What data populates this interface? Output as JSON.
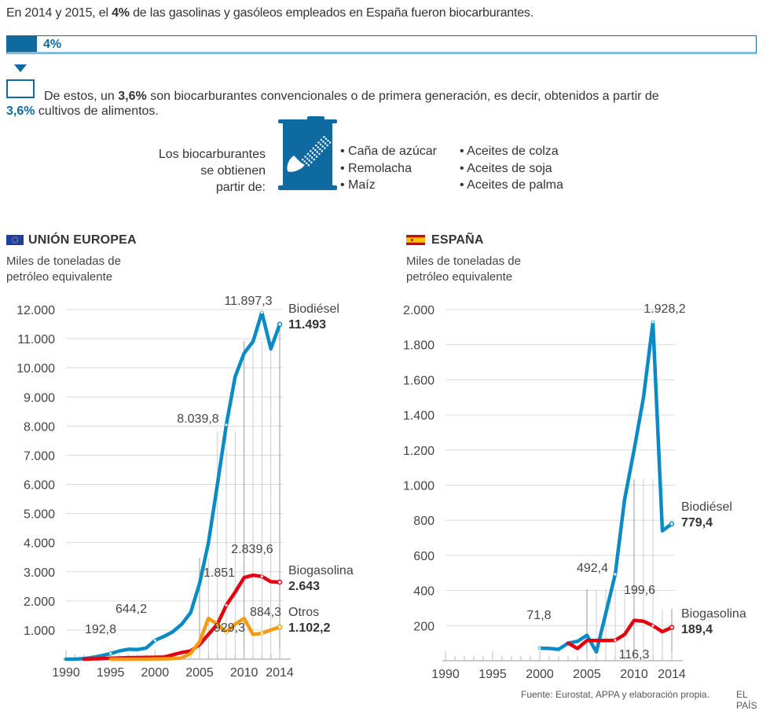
{
  "intro": {
    "pre": "En 2014 y 2015, el ",
    "bold": "4%",
    "post": " de las gasolinas y gasóleos empleados en España fueron biocarburantes."
  },
  "share_bar": {
    "label": "4%",
    "fill_percent": 4,
    "color": "#0e6aa1"
  },
  "subtext": {
    "pre": "De estos, un ",
    "bold": "3,6%",
    "post": " son biocarburantes convencionales o de primera generación, es decir, obtenidos a partir de",
    "line2_bold": "3,6%",
    "line2_post": " cultivos de alimentos."
  },
  "sources": {
    "label": [
      "Los biocarburantes",
      "se obtienen",
      "partir de:"
    ],
    "icon": "corn-can-icon",
    "col1": [
      "Caña de azúcar",
      "Remolacha",
      "Maíz"
    ],
    "col2": [
      "Aceites de colza",
      "Aceites de soja",
      "Aceites de palma"
    ]
  },
  "footer": {
    "source": "Fuente: Eurostat, APPA y elaboración propia.",
    "brand": "EL PAÍS"
  },
  "colors": {
    "biodiesel": "#0a8bc6",
    "biogasolina": "#e3000f",
    "otros": "#f39c12",
    "accent": "#0e6aa1"
  },
  "chart_data": [
    {
      "type": "line",
      "title": "UNIÓN EUROPEA",
      "flag": "eu-flag-icon",
      "ylabel": "Miles de toneladas de petróleo equivalente",
      "xlim": [
        1990,
        2014
      ],
      "ylim": [
        0,
        12000
      ],
      "yticks": [
        1000,
        2000,
        3000,
        4000,
        5000,
        6000,
        7000,
        8000,
        9000,
        10000,
        11000,
        12000
      ],
      "ytick_labels": [
        "1.000",
        "2.000",
        "3.000",
        "4.000",
        "5.000",
        "6.000",
        "7.000",
        "8.000",
        "9.000",
        "10.000",
        "11.000",
        "12.000"
      ],
      "xticks": [
        1990,
        1995,
        2000,
        2005,
        2010,
        2014
      ],
      "xtick_labels": [
        "1990",
        "1995",
        "2000",
        "2005",
        "2010",
        "2014"
      ],
      "grid": true,
      "series": [
        {
          "name": "Biodiésel",
          "end_label": "11.493",
          "color_key": "biodiesel",
          "x": [
            1990,
            1991,
            1992,
            1993,
            1994,
            1995,
            1996,
            1997,
            1998,
            1999,
            2000,
            2001,
            2002,
            2003,
            2004,
            2005,
            2006,
            2007,
            2008,
            2009,
            2010,
            2011,
            2012,
            2013,
            2014
          ],
          "y": [
            0,
            0,
            20,
            60,
            120,
            192.8,
            280,
            340,
            330,
            380,
            644.2,
            780,
            940,
            1200,
            1600,
            2600,
            4000,
            6000,
            8039.8,
            9700,
            10500,
            10900,
            11897.3,
            10650,
            11493
          ]
        },
        {
          "name": "Biogasolina",
          "end_label": "2.643",
          "color_key": "biogasolina",
          "x": [
            1992,
            1993,
            1994,
            1995,
            1996,
            1997,
            1998,
            1999,
            2000,
            2001,
            2002,
            2003,
            2004,
            2005,
            2006,
            2007,
            2008,
            2009,
            2010,
            2011,
            2012,
            2013,
            2014
          ],
          "y": [
            0,
            10,
            20,
            30,
            40,
            50,
            55,
            60,
            65,
            70,
            150,
            230,
            280,
            500,
            850,
            1200,
            1851,
            2300,
            2800,
            2880,
            2839.6,
            2660,
            2643
          ]
        },
        {
          "name": "Otros",
          "end_label": "1.102,2",
          "color_key": "otros",
          "x": [
            1995,
            1996,
            1997,
            1998,
            1999,
            2000,
            2001,
            2002,
            2003,
            2004,
            2005,
            2006,
            2007,
            2008,
            2009,
            2010,
            2011,
            2012,
            2013,
            2014
          ],
          "y": [
            0,
            0,
            0,
            0,
            0,
            5,
            10,
            20,
            40,
            200,
            600,
            1400,
            1200,
            929.3,
            1200,
            1400,
            850,
            884.3,
            1000,
            1102.2
          ]
        }
      ],
      "annotations": [
        {
          "text": "192,8",
          "x": 1995,
          "y": 192.8
        },
        {
          "text": "644,2",
          "x": 2000,
          "y": 644.2
        },
        {
          "text": "8.039,8",
          "x": 2008,
          "y": 8039.8
        },
        {
          "text": "11.897,3",
          "x": 2012,
          "y": 11897.3
        },
        {
          "text": "1.851",
          "x": 2008,
          "y": 1851
        },
        {
          "text": "2.839,6",
          "x": 2012,
          "y": 2839.6
        },
        {
          "text": "929,3",
          "x": 2008,
          "y": 929.3
        },
        {
          "text": "884,3",
          "x": 2012,
          "y": 884.3
        }
      ]
    },
    {
      "type": "line",
      "title": "ESPAÑA",
      "flag": "spain-flag-icon",
      "ylabel": "Miles de toneladas de petróleo equivalente",
      "xlim": [
        1990,
        2014
      ],
      "ylim": [
        0,
        2000
      ],
      "yticks": [
        200,
        400,
        600,
        800,
        1000,
        1200,
        1400,
        1600,
        1800,
        2000
      ],
      "ytick_labels": [
        "200",
        "400",
        "600",
        "800",
        "1.000",
        "1.200",
        "1.400",
        "1.600",
        "1.800",
        "2.000"
      ],
      "xticks": [
        1990,
        1995,
        2000,
        2005,
        2010,
        2014
      ],
      "xtick_labels": [
        "1990",
        "1995",
        "2000",
        "2005",
        "2010",
        "2014"
      ],
      "grid": true,
      "series": [
        {
          "name": "Biodiésel",
          "end_label": "779,4",
          "color_key": "biodiesel",
          "x": [
            2000,
            2001,
            2002,
            2003,
            2004,
            2005,
            2006,
            2007,
            2008,
            2009,
            2010,
            2011,
            2012,
            2013,
            2014
          ],
          "y": [
            71.8,
            70,
            65,
            100,
            110,
            145,
            50,
            270,
            492.4,
            920,
            1200,
            1500,
            1928.2,
            740,
            779.4
          ]
        },
        {
          "name": "Biogasolina",
          "end_label": "189,4",
          "color_key": "biogasolina",
          "x": [
            2003,
            2004,
            2005,
            2006,
            2007,
            2008,
            2009,
            2010,
            2011,
            2012,
            2013,
            2014
          ],
          "y": [
            100,
            70,
            115,
            115,
            115,
            116.3,
            150,
            230,
            225,
            199.6,
            165,
            189.4
          ]
        }
      ],
      "annotations": [
        {
          "text": "71,8",
          "x": 2000,
          "y": 71.8
        },
        {
          "text": "492,4",
          "x": 2008,
          "y": 492.4
        },
        {
          "text": "116,3",
          "x": 2008,
          "y": 116.3
        },
        {
          "text": "1.928,2",
          "x": 2012,
          "y": 1928.2
        },
        {
          "text": "199,6",
          "x": 2012,
          "y": 199.6
        }
      ]
    }
  ]
}
